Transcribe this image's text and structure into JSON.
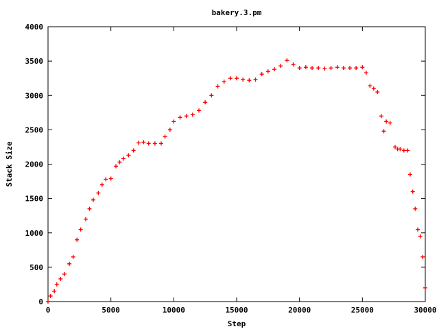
{
  "chart_data": {
    "type": "scatter",
    "title": "bakery.3.pm",
    "xlabel": "Step",
    "ylabel": "Stack Size",
    "xlim": [
      0,
      30000
    ],
    "ylim": [
      0,
      4000
    ],
    "x_ticks": [
      0,
      5000,
      10000,
      15000,
      20000,
      25000,
      30000
    ],
    "y_ticks": [
      0,
      500,
      1000,
      1500,
      2000,
      2500,
      3000,
      3500,
      4000
    ],
    "x_tick_labels": [
      "0",
      "5000",
      "10000",
      "15000",
      "20000",
      "25000",
      "30000"
    ],
    "y_tick_labels": [
      "0",
      "500",
      "1000",
      "1500",
      "2000",
      "2500",
      "3000",
      "3500",
      "4000"
    ],
    "grid": false,
    "legend": "none",
    "marker": "+",
    "series": [
      {
        "color": "#ff0000",
        "x": [
          0,
          200,
          500,
          700,
          1000,
          1300,
          1700,
          2000,
          2300,
          2600,
          3000,
          3300,
          3600,
          4000,
          4300,
          4600,
          5000,
          5400,
          5700,
          6000,
          6400,
          6800,
          7200,
          7600,
          8000,
          8500,
          9000,
          9300,
          9700,
          10000,
          10500,
          11000,
          11500,
          12000,
          12500,
          13000,
          13500,
          14000,
          14500,
          15000,
          15500,
          16000,
          16500,
          17000,
          17500,
          18000,
          18500,
          19000,
          19500,
          20000,
          20500,
          21000,
          21500,
          22000,
          22500,
          23000,
          23500,
          24000,
          24500,
          25000,
          25300,
          25600,
          25900,
          26200,
          26500,
          26700,
          26900,
          27200,
          27600,
          27800,
          28000,
          28300,
          28600,
          28800,
          29000,
          29200,
          29400,
          29600,
          29800,
          30000
        ],
        "y": [
          0,
          80,
          150,
          250,
          330,
          400,
          550,
          650,
          900,
          1050,
          1200,
          1350,
          1480,
          1580,
          1700,
          1780,
          1790,
          1970,
          2030,
          2080,
          2130,
          2200,
          2310,
          2320,
          2300,
          2300,
          2300,
          2400,
          2500,
          2620,
          2680,
          2700,
          2720,
          2780,
          2900,
          3000,
          3130,
          3200,
          3250,
          3250,
          3230,
          3220,
          3230,
          3310,
          3350,
          3380,
          3430,
          3510,
          3450,
          3400,
          3410,
          3400,
          3400,
          3390,
          3400,
          3410,
          3400,
          3400,
          3400,
          3410,
          3330,
          3140,
          3100,
          3050,
          2700,
          2480,
          2620,
          2600,
          2250,
          2220,
          2220,
          2200,
          2200,
          1850,
          1600,
          1350,
          1050,
          950,
          650,
          200
        ]
      }
    ]
  }
}
